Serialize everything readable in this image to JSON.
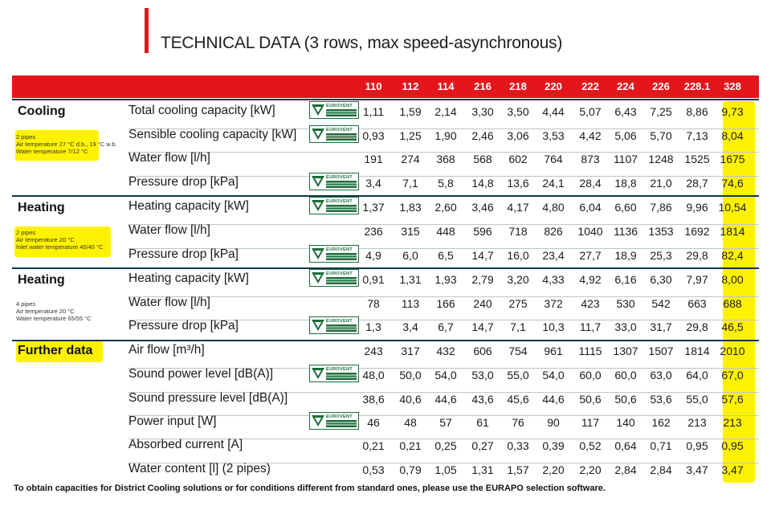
{
  "title": "TECHNICAL DATA (3 rows, max speed-asynchronous)",
  "models": [
    "110",
    "112",
    "114",
    "216",
    "218",
    "220",
    "222",
    "224",
    "226",
    "228.1",
    "328"
  ],
  "badge_text": "EUROVENT",
  "colors": {
    "accent": "#e3161b",
    "highlight": "#fff200",
    "badge": "#1d6b3a"
  },
  "sections": [
    {
      "title": "Cooling",
      "note_bold": "2 pipes",
      "notes": [
        "Air temperature 27 °C d.b., 19 °C w.b.",
        "Water temperature 7/12 °C"
      ],
      "rows": [
        {
          "label": "Total cooling capacity [kW]",
          "badge": true,
          "values": [
            "1,11",
            "1,59",
            "2,14",
            "3,30",
            "3,50",
            "4,44",
            "5,07",
            "6,43",
            "7,25",
            "8,86",
            "9,73"
          ]
        },
        {
          "label": "Sensible cooling capacity [kW]",
          "badge": true,
          "values": [
            "0,93",
            "1,25",
            "1,90",
            "2,46",
            "3,06",
            "3,53",
            "4,42",
            "5,06",
            "5,70",
            "7,13",
            "8,04"
          ]
        },
        {
          "label": "Water flow [l/h]",
          "badge": false,
          "values": [
            "191",
            "274",
            "368",
            "568",
            "602",
            "764",
            "873",
            "1107",
            "1248",
            "1525",
            "1675"
          ]
        },
        {
          "label": "Pressure drop [kPa]",
          "badge": true,
          "values": [
            "3,4",
            "7,1",
            "5,8",
            "14,8",
            "13,6",
            "24,1",
            "28,4",
            "18,8",
            "21,0",
            "28,7",
            "74,6"
          ]
        }
      ]
    },
    {
      "title": "Heating",
      "note_bold": "2 pipes",
      "notes": [
        "Air temperature 20 °C",
        "Inlet water temperature 45/40 °C"
      ],
      "rows": [
        {
          "label": "Heating capacity [kW]",
          "badge": true,
          "values": [
            "1,37",
            "1,83",
            "2,60",
            "3,46",
            "4,17",
            "4,80",
            "6,04",
            "6,60",
            "7,86",
            "9,96",
            "10,54"
          ]
        },
        {
          "label": "Water flow [l/h]",
          "badge": false,
          "values": [
            "236",
            "315",
            "448",
            "596",
            "718",
            "826",
            "1040",
            "1136",
            "1353",
            "1692",
            "1814"
          ]
        },
        {
          "label": "Pressure drop [kPa]",
          "badge": true,
          "values": [
            "4,9",
            "6,0",
            "6,5",
            "14,7",
            "16,0",
            "23,4",
            "27,7",
            "18,9",
            "25,3",
            "29,8",
            "82,4"
          ]
        }
      ]
    },
    {
      "title": "Heating",
      "note_bold": "4 pipes",
      "notes": [
        "Air temperature 20 °C",
        "Water temperature 65/55 °C"
      ],
      "rows": [
        {
          "label": "Heating capacity [kW]",
          "badge": true,
          "values": [
            "0,91",
            "1,31",
            "1,93",
            "2,79",
            "3,20",
            "4,33",
            "4,92",
            "6,16",
            "6,30",
            "7,97",
            "8,00"
          ]
        },
        {
          "label": "Water flow [l/h]",
          "badge": false,
          "values": [
            "78",
            "113",
            "166",
            "240",
            "275",
            "372",
            "423",
            "530",
            "542",
            "663",
            "688"
          ]
        },
        {
          "label": "Pressure drop [kPa]",
          "badge": true,
          "values": [
            "1,3",
            "3,4",
            "6,7",
            "14,7",
            "7,1",
            "10,3",
            "11,7",
            "33,0",
            "31,7",
            "29,8",
            "46,5"
          ]
        }
      ]
    },
    {
      "title": "Further data",
      "note_bold": "",
      "notes": [],
      "rows": [
        {
          "label": "Air flow [m³/h]",
          "badge": false,
          "values": [
            "243",
            "317",
            "432",
            "606",
            "754",
            "961",
            "1115",
            "1307",
            "1507",
            "1814",
            "2010"
          ]
        },
        {
          "label": "Sound power level [dB(A)]",
          "badge": true,
          "values": [
            "48,0",
            "50,0",
            "54,0",
            "53,0",
            "55,0",
            "54,0",
            "60,0",
            "60,0",
            "63,0",
            "64,0",
            "67,0"
          ]
        },
        {
          "label": "Sound pressure level [dB(A)]",
          "badge": false,
          "values": [
            "38,6",
            "40,6",
            "44,6",
            "43,6",
            "45,6",
            "44,6",
            "50,6",
            "50,6",
            "53,6",
            "55,0",
            "57,6"
          ]
        },
        {
          "label": "Power input [W]",
          "badge": true,
          "values": [
            "46",
            "48",
            "57",
            "61",
            "76",
            "90",
            "117",
            "140",
            "162",
            "213",
            "213"
          ]
        },
        {
          "label": "Absorbed current [A]",
          "badge": false,
          "values": [
            "0,21",
            "0,21",
            "0,25",
            "0,27",
            "0,33",
            "0,39",
            "0,52",
            "0,64",
            "0,71",
            "0,95",
            "0,95"
          ]
        },
        {
          "label": "Water content [l] (2 pipes)",
          "badge": false,
          "values": [
            "0,53",
            "0,79",
            "1,05",
            "1,31",
            "1,57",
            "2,20",
            "2,20",
            "2,84",
            "2,84",
            "3,47",
            "3,47"
          ]
        }
      ]
    }
  ],
  "footer": "To obtain capacities for District Cooling solutions or for conditions different from standard ones, please use the EURAPO selection software."
}
